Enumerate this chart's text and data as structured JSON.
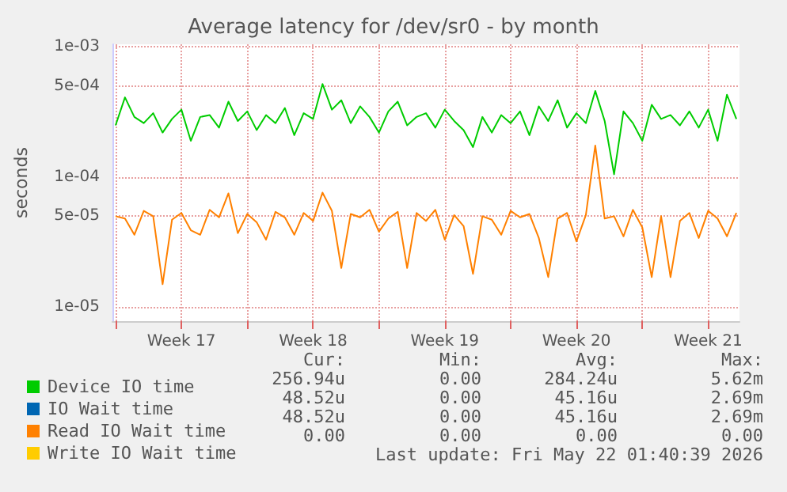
{
  "chart_data": {
    "type": "line",
    "title": "Average latency for /dev/sr0 - by month",
    "ylabel": "seconds",
    "log": "y",
    "grid": true,
    "legend": "bottom",
    "marker": "none",
    "line_style": "solid",
    "xlim": [
      "2026-04-19T20:00",
      "2026-05-23T04:00"
    ],
    "xticks": [
      {
        "value": "2026-04-20T00:00",
        "label": null
      },
      {
        "value": "2026-04-23T12:00",
        "label": "Week 17"
      },
      {
        "value": "2026-04-27T00:00",
        "label": null
      },
      {
        "value": "2026-04-30T12:00",
        "label": "Week 18"
      },
      {
        "value": "2026-05-04T00:00",
        "label": null
      },
      {
        "value": "2026-05-07T12:00",
        "label": "Week 19"
      },
      {
        "value": "2026-05-11T00:00",
        "label": null
      },
      {
        "value": "2026-05-14T12:00",
        "label": "Week 20"
      },
      {
        "value": "2026-05-18T00:00",
        "label": null
      },
      {
        "value": "2026-05-21T12:00",
        "label": "Week 21"
      }
    ],
    "ylim": [
      7.8e-06,
      0.00105
    ],
    "yticks": [
      {
        "value": 1e-05,
        "label": "1e-05"
      },
      {
        "value": 5e-05,
        "label": "5e-05"
      },
      {
        "value": 0.0001,
        "label": "1e-04"
      },
      {
        "value": 0.0005,
        "label": "5e-04"
      },
      {
        "value": 0.001,
        "label": "1e-03"
      }
    ],
    "x": [
      "2026-04-20T00:00",
      "2026-04-20T12:00",
      "2026-04-21T00:00",
      "2026-04-21T12:00",
      "2026-04-22T00:00",
      "2026-04-22T12:00",
      "2026-04-23T00:00",
      "2026-04-23T12:00",
      "2026-04-24T00:00",
      "2026-04-24T12:00",
      "2026-04-25T00:00",
      "2026-04-25T12:00",
      "2026-04-26T00:00",
      "2026-04-26T12:00",
      "2026-04-27T00:00",
      "2026-04-27T12:00",
      "2026-04-28T00:00",
      "2026-04-28T12:00",
      "2026-04-29T00:00",
      "2026-04-29T12:00",
      "2026-04-30T00:00",
      "2026-04-30T12:00",
      "2026-05-01T00:00",
      "2026-05-01T12:00",
      "2026-05-02T00:00",
      "2026-05-02T12:00",
      "2026-05-03T00:00",
      "2026-05-03T12:00",
      "2026-05-04T00:00",
      "2026-05-04T12:00",
      "2026-05-05T00:00",
      "2026-05-05T12:00",
      "2026-05-06T00:00",
      "2026-05-06T12:00",
      "2026-05-07T00:00",
      "2026-05-07T12:00",
      "2026-05-08T00:00",
      "2026-05-08T12:00",
      "2026-05-09T00:00",
      "2026-05-09T12:00",
      "2026-05-10T00:00",
      "2026-05-10T12:00",
      "2026-05-11T00:00",
      "2026-05-11T12:00",
      "2026-05-12T00:00",
      "2026-05-12T12:00",
      "2026-05-13T00:00",
      "2026-05-13T12:00",
      "2026-05-14T00:00",
      "2026-05-14T12:00",
      "2026-05-15T00:00",
      "2026-05-15T12:00",
      "2026-05-16T00:00",
      "2026-05-16T12:00",
      "2026-05-17T00:00",
      "2026-05-17T12:00",
      "2026-05-18T00:00",
      "2026-05-18T12:00",
      "2026-05-19T00:00",
      "2026-05-19T12:00",
      "2026-05-20T00:00",
      "2026-05-20T12:00",
      "2026-05-21T00:00",
      "2026-05-21T12:00",
      "2026-05-22T00:00",
      "2026-05-22T12:00",
      "2026-05-23T00:00"
    ],
    "series": [
      {
        "name": "Device IO time",
        "color": "#00cc00",
        "values": [
          0.00025,
          0.00041,
          0.00029,
          0.00026,
          0.00031,
          0.00022,
          0.00028,
          0.00033,
          0.00019,
          0.00029,
          0.0003,
          0.00024,
          0.00038,
          0.00027,
          0.00032,
          0.00023,
          0.0003,
          0.00026,
          0.00034,
          0.00021,
          0.00031,
          0.00028,
          0.00052,
          0.00033,
          0.00039,
          0.00026,
          0.00035,
          0.00029,
          0.00022,
          0.00032,
          0.00038,
          0.00025,
          0.00029,
          0.00031,
          0.00024,
          0.00033,
          0.00027,
          0.00023,
          0.00017,
          0.00029,
          0.00022,
          0.0003,
          0.00026,
          0.00032,
          0.00021,
          0.00035,
          0.00027,
          0.00039,
          0.00024,
          0.00031,
          0.00026,
          0.00046,
          0.00027,
          0.000105,
          0.00032,
          0.00026,
          0.00019,
          0.00036,
          0.00028,
          0.0003,
          0.00025,
          0.00032,
          0.00024,
          0.00033,
          0.00019,
          0.00043,
          0.00028
        ]
      },
      {
        "name": "IO Wait time",
        "color": "#0066b3",
        "values": [
          null,
          null,
          null,
          null,
          null,
          null,
          null,
          null,
          null,
          null,
          null,
          null,
          null,
          null,
          null,
          null,
          null,
          null,
          null,
          null,
          null,
          null,
          null,
          null,
          null,
          null,
          null,
          null,
          null,
          null,
          null,
          null,
          null,
          null,
          null,
          null,
          null,
          null,
          null,
          null,
          null,
          null,
          null,
          null,
          null,
          null,
          null,
          null,
          null,
          null,
          null,
          null,
          null,
          null,
          null,
          null,
          null,
          null,
          null,
          null,
          null,
          null,
          null,
          null,
          null,
          null,
          null
        ]
      },
      {
        "name": "Read IO Wait time",
        "color": "#ff8000",
        "values": [
          5e-05,
          4.8e-05,
          3.6e-05,
          5.5e-05,
          5e-05,
          1.5e-05,
          4.7e-05,
          5.3e-05,
          3.9e-05,
          3.6e-05,
          5.6e-05,
          4.9e-05,
          7.5e-05,
          3.7e-05,
          5.2e-05,
          4.5e-05,
          3.3e-05,
          5.4e-05,
          4.9e-05,
          3.6e-05,
          5.3e-05,
          4.6e-05,
          7.6e-05,
          5.5e-05,
          2e-05,
          5.2e-05,
          4.9e-05,
          5.6e-05,
          3.8e-05,
          4.8e-05,
          5.4e-05,
          2e-05,
          5.3e-05,
          4.6e-05,
          5.6e-05,
          3.3e-05,
          5.1e-05,
          4.2e-05,
          1.8e-05,
          5e-05,
          4.7e-05,
          3.6e-05,
          5.5e-05,
          4.9e-05,
          5.2e-05,
          3.4e-05,
          1.7e-05,
          4.8e-05,
          5.3e-05,
          3.2e-05,
          5.1e-05,
          0.000175,
          4.8e-05,
          5e-05,
          3.5e-05,
          5.6e-05,
          4.1e-05,
          1.7e-05,
          5e-05,
          1.7e-05,
          4.6e-05,
          5.3e-05,
          3.4e-05,
          5.5e-05,
          4.8e-05,
          3.5e-05,
          5.3e-05
        ]
      },
      {
        "name": "Write IO Wait time",
        "color": "#ffcc00",
        "values": [
          null,
          null,
          null,
          null,
          null,
          null,
          null,
          null,
          null,
          null,
          null,
          null,
          null,
          null,
          null,
          null,
          null,
          null,
          null,
          null,
          null,
          null,
          null,
          null,
          null,
          null,
          null,
          null,
          null,
          null,
          null,
          null,
          null,
          null,
          null,
          null,
          null,
          null,
          null,
          null,
          null,
          null,
          null,
          null,
          null,
          null,
          null,
          null,
          null,
          null,
          null,
          null,
          null,
          null,
          null,
          null,
          null,
          null,
          null,
          null,
          null,
          null,
          null,
          null,
          null,
          null,
          null
        ]
      }
    ],
    "annotations": [
      "Cur:",
      "Min:",
      "Avg:",
      "Max:",
      "256.94u",
      "0.00",
      "284.24u",
      "5.62m",
      "48.52u",
      "0.00",
      "45.16u",
      "2.69m",
      "48.52u",
      "0.00",
      "45.16u",
      "2.69m",
      "0.00",
      "0.00",
      "0.00",
      "0.00",
      "Last update: Fri May 22 01:40:39 2026"
    ]
  }
}
